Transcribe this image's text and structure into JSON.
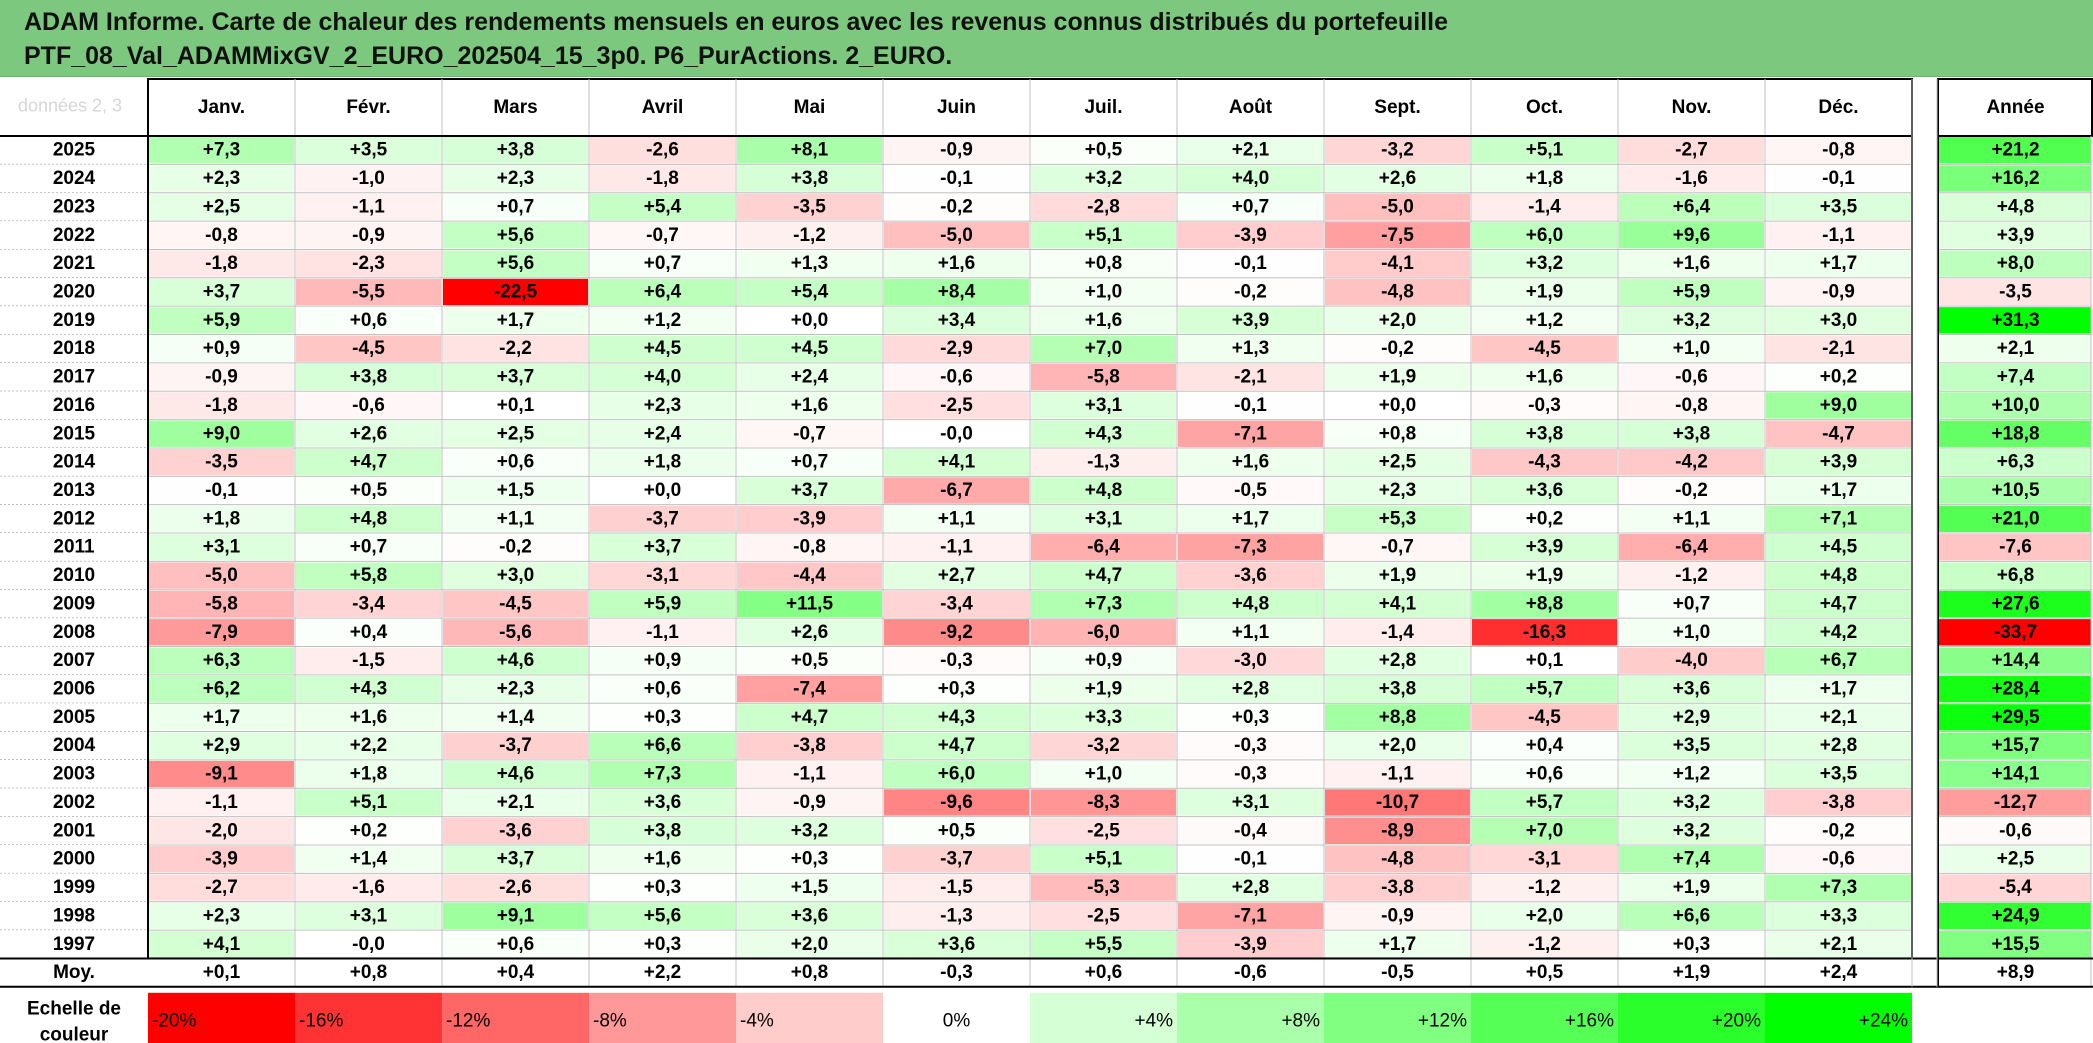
{
  "title_line1": "ADAM Informe. Carte de chaleur des rendements mensuels en euros avec les revenus connus distribués du portefeuille",
  "title_line2": "PTF_08_Val_ADAMMixGV_2_EURO_202504_15_3p0. P6_PurActions. 2_EURO.",
  "faint_header_text": "données 2, 3",
  "chart_data": {
    "type": "heatmap",
    "title": "ADAM Informe. Carte de chaleur des rendements mensuels en euros avec les revenus connus distribués du portefeuille PTF_08_Val_ADAMMixGV_2_EURO_202504_15_3p0. P6_PurActions. 2_EURO.",
    "unit": "%",
    "columns": [
      "Janv.",
      "Févr.",
      "Mars",
      "Avril",
      "Mai",
      "Juin",
      "Juil.",
      "Août",
      "Sept.",
      "Oct.",
      "Nov.",
      "Déc."
    ],
    "year_column_label": "Année",
    "rows": [
      {
        "year": "2025",
        "months": [
          "+7,3",
          "+3,5",
          "+3,8",
          "-2,6",
          "+8,1",
          "-0,9",
          "+0,5",
          "+2,1",
          "-3,2",
          "+5,1",
          "-2,7",
          "-0,8"
        ],
        "annual": "+21,2"
      },
      {
        "year": "2024",
        "months": [
          "+2,3",
          "-1,0",
          "+2,3",
          "-1,8",
          "+3,8",
          "-0,1",
          "+3,2",
          "+4,0",
          "+2,6",
          "+1,8",
          "-1,6",
          "-0,1"
        ],
        "annual": "+16,2"
      },
      {
        "year": "2023",
        "months": [
          "+2,5",
          "-1,1",
          "+0,7",
          "+5,4",
          "-3,5",
          "-0,2",
          "-2,8",
          "+0,7",
          "-5,0",
          "-1,4",
          "+6,4",
          "+3,5"
        ],
        "annual": "+4,8"
      },
      {
        "year": "2022",
        "months": [
          "-0,8",
          "-0,9",
          "+5,6",
          "-0,7",
          "-1,2",
          "-5,0",
          "+5,1",
          "-3,9",
          "-7,5",
          "+6,0",
          "+9,6",
          "-1,1"
        ],
        "annual": "+3,9"
      },
      {
        "year": "2021",
        "months": [
          "-1,8",
          "-2,3",
          "+5,6",
          "+0,7",
          "+1,3",
          "+1,6",
          "+0,8",
          "-0,1",
          "-4,1",
          "+3,2",
          "+1,6",
          "+1,7"
        ],
        "annual": "+8,0"
      },
      {
        "year": "2020",
        "months": [
          "+3,7",
          "-5,5",
          "-22,5",
          "+6,4",
          "+5,4",
          "+8,4",
          "+1,0",
          "-0,2",
          "-4,8",
          "+1,9",
          "+5,9",
          "-0,9"
        ],
        "annual": "-3,5"
      },
      {
        "year": "2019",
        "months": [
          "+5,9",
          "+0,6",
          "+1,7",
          "+1,2",
          "+0,0",
          "+3,4",
          "+1,6",
          "+3,9",
          "+2,0",
          "+1,2",
          "+3,2",
          "+3,0"
        ],
        "annual": "+31,3"
      },
      {
        "year": "2018",
        "months": [
          "+0,9",
          "-4,5",
          "-2,2",
          "+4,5",
          "+4,5",
          "-2,9",
          "+7,0",
          "+1,3",
          "-0,2",
          "-4,5",
          "+1,0",
          "-2,1"
        ],
        "annual": "+2,1"
      },
      {
        "year": "2017",
        "months": [
          "-0,9",
          "+3,8",
          "+3,7",
          "+4,0",
          "+2,4",
          "-0,6",
          "-5,8",
          "-2,1",
          "+1,9",
          "+1,6",
          "-0,6",
          "+0,2"
        ],
        "annual": "+7,4"
      },
      {
        "year": "2016",
        "months": [
          "-1,8",
          "-0,6",
          "+0,1",
          "+2,3",
          "+1,6",
          "-2,5",
          "+3,1",
          "-0,1",
          "+0,0",
          "-0,3",
          "-0,8",
          "+9,0"
        ],
        "annual": "+10,0"
      },
      {
        "year": "2015",
        "months": [
          "+9,0",
          "+2,6",
          "+2,5",
          "+2,4",
          "-0,7",
          "-0,0",
          "+4,3",
          "-7,1",
          "+0,8",
          "+3,8",
          "+3,8",
          "-4,7"
        ],
        "annual": "+18,8"
      },
      {
        "year": "2014",
        "months": [
          "-3,5",
          "+4,7",
          "+0,6",
          "+1,8",
          "+0,7",
          "+4,1",
          "-1,3",
          "+1,6",
          "+2,5",
          "-4,3",
          "-4,2",
          "+3,9"
        ],
        "annual": "+6,3"
      },
      {
        "year": "2013",
        "months": [
          "-0,1",
          "+0,5",
          "+1,5",
          "+0,0",
          "+3,7",
          "-6,7",
          "+4,8",
          "-0,5",
          "+2,3",
          "+3,6",
          "-0,2",
          "+1,7"
        ],
        "annual": "+10,5"
      },
      {
        "year": "2012",
        "months": [
          "+1,8",
          "+4,8",
          "+1,1",
          "-3,7",
          "-3,9",
          "+1,1",
          "+3,1",
          "+1,7",
          "+5,3",
          "+0,2",
          "+1,1",
          "+7,1"
        ],
        "annual": "+21,0"
      },
      {
        "year": "2011",
        "months": [
          "+3,1",
          "+0,7",
          "-0,2",
          "+3,7",
          "-0,8",
          "-1,1",
          "-6,4",
          "-7,3",
          "-0,7",
          "+3,9",
          "-6,4",
          "+4,5"
        ],
        "annual": "-7,6"
      },
      {
        "year": "2010",
        "months": [
          "-5,0",
          "+5,8",
          "+3,0",
          "-3,1",
          "-4,4",
          "+2,7",
          "+4,7",
          "-3,6",
          "+1,9",
          "+1,9",
          "-1,2",
          "+4,8"
        ],
        "annual": "+6,8"
      },
      {
        "year": "2009",
        "months": [
          "-5,8",
          "-3,4",
          "-4,5",
          "+5,9",
          "+11,5",
          "-3,4",
          "+7,3",
          "+4,8",
          "+4,1",
          "+8,8",
          "+0,7",
          "+4,7"
        ],
        "annual": "+27,6"
      },
      {
        "year": "2008",
        "months": [
          "-7,9",
          "+0,4",
          "-5,6",
          "-1,1",
          "+2,6",
          "-9,2",
          "-6,0",
          "+1,1",
          "-1,4",
          "-16,3",
          "+1,0",
          "+4,2"
        ],
        "annual": "-33,7"
      },
      {
        "year": "2007",
        "months": [
          "+6,3",
          "-1,5",
          "+4,6",
          "+0,9",
          "+0,5",
          "-0,3",
          "+0,9",
          "-3,0",
          "+2,8",
          "+0,1",
          "-4,0",
          "+6,7"
        ],
        "annual": "+14,4"
      },
      {
        "year": "2006",
        "months": [
          "+6,2",
          "+4,3",
          "+2,3",
          "+0,6",
          "-7,4",
          "+0,3",
          "+1,9",
          "+2,8",
          "+3,8",
          "+5,7",
          "+3,6",
          "+1,7"
        ],
        "annual": "+28,4"
      },
      {
        "year": "2005",
        "months": [
          "+1,7",
          "+1,6",
          "+1,4",
          "+0,3",
          "+4,7",
          "+4,3",
          "+3,3",
          "+0,3",
          "+8,8",
          "-4,5",
          "+2,9",
          "+2,1"
        ],
        "annual": "+29,5"
      },
      {
        "year": "2004",
        "months": [
          "+2,9",
          "+2,2",
          "-3,7",
          "+6,6",
          "-3,8",
          "+4,7",
          "-3,2",
          "-0,3",
          "+2,0",
          "+0,4",
          "+3,5",
          "+2,8"
        ],
        "annual": "+15,7"
      },
      {
        "year": "2003",
        "months": [
          "-9,1",
          "+1,8",
          "+4,6",
          "+7,3",
          "-1,1",
          "+6,0",
          "+1,0",
          "-0,3",
          "-1,1",
          "+0,6",
          "+1,2",
          "+3,5"
        ],
        "annual": "+14,1"
      },
      {
        "year": "2002",
        "months": [
          "-1,1",
          "+5,1",
          "+2,1",
          "+3,6",
          "-0,9",
          "-9,6",
          "-8,3",
          "+3,1",
          "-10,7",
          "+5,7",
          "+3,2",
          "-3,8"
        ],
        "annual": "-12,7"
      },
      {
        "year": "2001",
        "months": [
          "-2,0",
          "+0,2",
          "-3,6",
          "+3,8",
          "+3,2",
          "+0,5",
          "-2,5",
          "-0,4",
          "-8,9",
          "+7,0",
          "+3,2",
          "-0,2"
        ],
        "annual": "-0,6"
      },
      {
        "year": "2000",
        "months": [
          "-3,9",
          "+1,4",
          "+3,7",
          "+1,6",
          "+0,3",
          "-3,7",
          "+5,1",
          "-0,1",
          "-4,8",
          "-3,1",
          "+7,4",
          "-0,6"
        ],
        "annual": "+2,5"
      },
      {
        "year": "1999",
        "months": [
          "-2,7",
          "-1,6",
          "-2,6",
          "+0,3",
          "+1,5",
          "-1,5",
          "-5,3",
          "+2,8",
          "-3,8",
          "-1,2",
          "+1,9",
          "+7,3"
        ],
        "annual": "-5,4"
      },
      {
        "year": "1998",
        "months": [
          "+2,3",
          "+3,1",
          "+9,1",
          "+5,6",
          "+3,6",
          "-1,3",
          "-2,5",
          "-7,1",
          "-0,9",
          "+2,0",
          "+6,6",
          "+3,3"
        ],
        "annual": "+24,9"
      },
      {
        "year": "1997",
        "months": [
          "+4,1",
          "-0,0",
          "+0,6",
          "+0,3",
          "+2,0",
          "+3,6",
          "+5,5",
          "-3,9",
          "+1,7",
          "-1,2",
          "+0,3",
          "+2,1"
        ],
        "annual": "+15,5"
      }
    ],
    "average_row": {
      "label": "Moy.",
      "months": [
        "+0,1",
        "+0,8",
        "+0,4",
        "+2,2",
        "+0,8",
        "-0,3",
        "+0,6",
        "-0,6",
        "-0,5",
        "+0,5",
        "+1,9",
        "+2,4"
      ],
      "annual": "+8,9"
    },
    "color_scale": {
      "label_line1": "Echelle de",
      "label_line2": "couleur",
      "stops": [
        {
          "label": "-20%",
          "value": -20
        },
        {
          "label": "-16%",
          "value": -16
        },
        {
          "label": "-12%",
          "value": -12
        },
        {
          "label": "-8%",
          "value": -8
        },
        {
          "label": "-4%",
          "value": -4
        },
        {
          "label": "0%",
          "value": 0
        },
        {
          "label": "+4%",
          "value": 4
        },
        {
          "label": "+8%",
          "value": 8
        },
        {
          "label": "+12%",
          "value": 12
        },
        {
          "label": "+16%",
          "value": 16
        },
        {
          "label": "+20%",
          "value": 20
        },
        {
          "label": "+24%",
          "value": 24
        }
      ]
    },
    "colors": {
      "negative": "#ff0000",
      "positive": "#00ff00",
      "neutral": "#ffffff",
      "grid": "#c0c0c0",
      "border": "#000000"
    }
  }
}
